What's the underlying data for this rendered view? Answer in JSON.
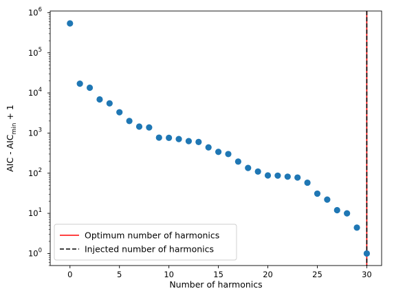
{
  "chart_data": {
    "type": "scatter",
    "title": "",
    "xlabel": "Number of harmonics",
    "ylabel": {
      "main": "AIC - AIC",
      "subscript": "min",
      "suffix": " + 1"
    },
    "yscale": "log",
    "xlim": [
      -2,
      31.5
    ],
    "ylim": [
      0.5,
      1100000
    ],
    "xticks": [
      0,
      5,
      10,
      15,
      20,
      25,
      30
    ],
    "yticks": [
      {
        "value": 1,
        "base": "10",
        "exp": "0"
      },
      {
        "value": 10,
        "base": "10",
        "exp": "1"
      },
      {
        "value": 100,
        "base": "10",
        "exp": "2"
      },
      {
        "value": 1000,
        "base": "10",
        "exp": "3"
      },
      {
        "value": 10000,
        "base": "10",
        "exp": "4"
      },
      {
        "value": 100000,
        "base": "10",
        "exp": "5"
      },
      {
        "value": 1000000,
        "base": "10",
        "exp": "6"
      }
    ],
    "grid": false,
    "legend_position": "lower-left",
    "point_color": "#1f77b4",
    "points": [
      {
        "x": 0,
        "y": 540000
      },
      {
        "x": 1,
        "y": 17000
      },
      {
        "x": 2,
        "y": 13500
      },
      {
        "x": 3,
        "y": 6900
      },
      {
        "x": 4,
        "y": 5500
      },
      {
        "x": 5,
        "y": 3300
      },
      {
        "x": 6,
        "y": 2000
      },
      {
        "x": 7,
        "y": 1450
      },
      {
        "x": 8,
        "y": 1380
      },
      {
        "x": 9,
        "y": 770
      },
      {
        "x": 10,
        "y": 760
      },
      {
        "x": 11,
        "y": 710
      },
      {
        "x": 12,
        "y": 630
      },
      {
        "x": 13,
        "y": 600
      },
      {
        "x": 14,
        "y": 440
      },
      {
        "x": 15,
        "y": 340
      },
      {
        "x": 16,
        "y": 300
      },
      {
        "x": 17,
        "y": 195
      },
      {
        "x": 18,
        "y": 135
      },
      {
        "x": 19,
        "y": 110
      },
      {
        "x": 20,
        "y": 88
      },
      {
        "x": 21,
        "y": 87
      },
      {
        "x": 22,
        "y": 82
      },
      {
        "x": 23,
        "y": 78
      },
      {
        "x": 24,
        "y": 58
      },
      {
        "x": 25,
        "y": 31
      },
      {
        "x": 26,
        "y": 22
      },
      {
        "x": 27,
        "y": 12
      },
      {
        "x": 28,
        "y": 10
      },
      {
        "x": 29,
        "y": 4.4
      },
      {
        "x": 30,
        "y": 1
      }
    ],
    "vlines": [
      {
        "name": "Optimum number of harmonics",
        "x": 30,
        "color": "#ff0000",
        "style": "solid"
      },
      {
        "name": "Injected number of harmonics",
        "x": 30,
        "color": "#000000",
        "style": "dashed"
      }
    ]
  }
}
